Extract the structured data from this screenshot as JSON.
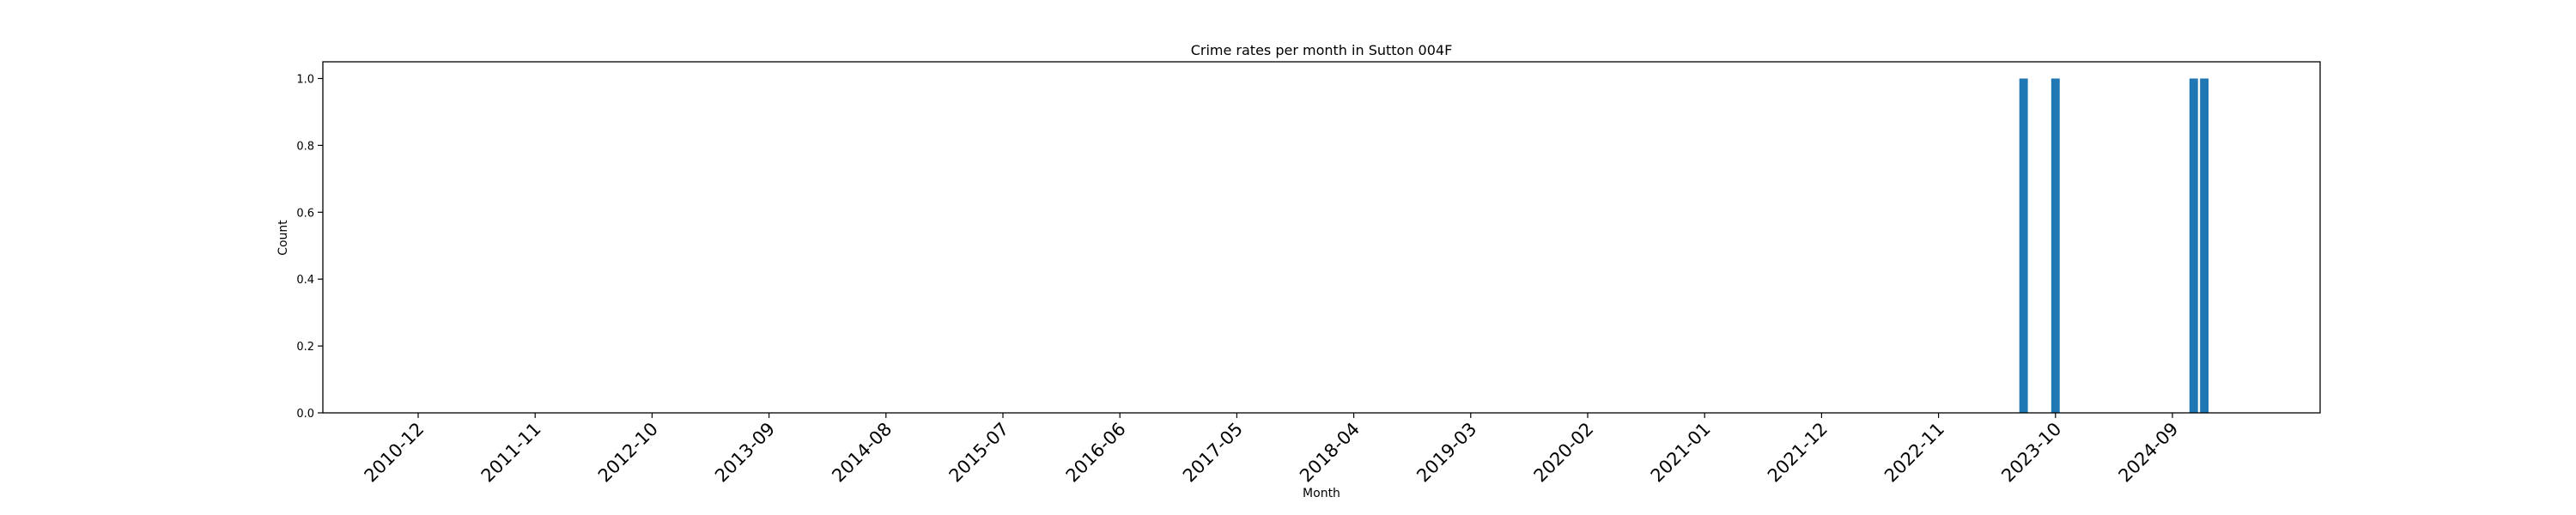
{
  "chart_data": {
    "type": "bar",
    "title": "Crime rates per month in Sutton 004F",
    "xlabel": "Month",
    "ylabel": "Count",
    "ylim": [
      0,
      1.05
    ],
    "yticks": [
      "0.0",
      "0.2",
      "0.4",
      "0.6",
      "0.8",
      "1.0"
    ],
    "x_tick_labels": [
      "2010-12",
      "2011-11",
      "2012-10",
      "2013-09",
      "2014-08",
      "2015-07",
      "2016-06",
      "2017-05",
      "2018-04",
      "2019-03",
      "2020-02",
      "2021-01",
      "2021-12",
      "2022-11",
      "2023-10",
      "2024-09"
    ],
    "categories": [
      "2023-07",
      "2023-10",
      "2024-11",
      "2024-12"
    ],
    "values": [
      1,
      1,
      1,
      1
    ],
    "bar_color": "#1f77b4",
    "grid": false
  }
}
